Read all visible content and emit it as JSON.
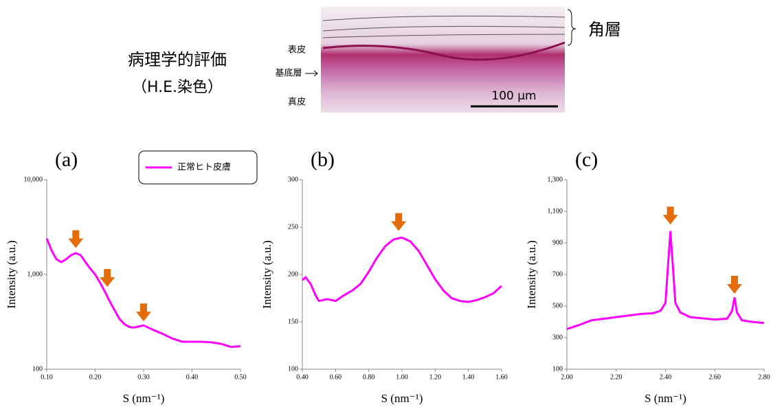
{
  "header": {
    "title": "病理学的評価",
    "subtitle": "（H.E.染色）"
  },
  "histology": {
    "layer_labels": [
      "表皮",
      "基底層",
      "真皮"
    ],
    "stratum_corneum": "角層",
    "scale_bar": "100 µm"
  },
  "chart_data": [
    {
      "type": "line",
      "panel_label": "(a)",
      "y_label": "Intensity (a.u.)",
      "x_label": "S (nm⁻¹)",
      "log_y": true,
      "legend": "top-right",
      "xlim": [
        0.1,
        0.5
      ],
      "xticks": [
        {
          "value": 0.1,
          "label": "0.10"
        },
        {
          "value": 0.2,
          "label": "0.20"
        },
        {
          "value": 0.3,
          "label": "0.30"
        },
        {
          "value": 0.4,
          "label": "0.40"
        },
        {
          "value": 0.5,
          "label": "0.50"
        }
      ],
      "ylim": [
        100,
        10000
      ],
      "yticks": [
        100,
        {
          "value": 1000,
          "label": "1,000"
        },
        {
          "value": 10000,
          "label": "10,000"
        }
      ],
      "x": [
        0.1,
        0.11,
        0.12,
        0.13,
        0.14,
        0.15,
        0.16,
        0.17,
        0.18,
        0.19,
        0.2,
        0.21,
        0.22,
        0.23,
        0.24,
        0.25,
        0.26,
        0.27,
        0.28,
        0.3,
        0.32,
        0.34,
        0.36,
        0.38,
        0.4,
        0.42,
        0.44,
        0.46,
        0.48,
        0.5
      ],
      "series": [
        {
          "name": "正常ヒト皮膚",
          "color": "#ff00ff",
          "values": [
            2400,
            1800,
            1450,
            1350,
            1450,
            1600,
            1680,
            1600,
            1350,
            1150,
            1000,
            820,
            660,
            520,
            420,
            340,
            300,
            280,
            275,
            290,
            260,
            235,
            210,
            195,
            195,
            195,
            192,
            185,
            172,
            175
          ]
        }
      ],
      "markers": [
        {
          "x": 0.16,
          "y": 1900
        },
        {
          "x": 0.225,
          "y": 740
        },
        {
          "x": 0.3,
          "y": 320
        }
      ],
      "marker_color": "#e46c0a"
    },
    {
      "type": "line",
      "panel_label": "(b)",
      "y_label": "Intensity (a.u.)",
      "x_label": "S (nm⁻¹)",
      "log_y": false,
      "xlim": [
        0.4,
        1.6
      ],
      "xticks": [
        {
          "value": 0.4,
          "label": "0.40"
        },
        {
          "value": 0.6,
          "label": "0.60"
        },
        {
          "value": 0.8,
          "label": "0.80"
        },
        {
          "value": 1.0,
          "label": "1.00"
        },
        {
          "value": 1.2,
          "label": "1.20"
        },
        {
          "value": 1.4,
          "label": "1.40"
        },
        {
          "value": 1.6,
          "label": "1.60"
        }
      ],
      "ylim": [
        100,
        300
      ],
      "yticks": [
        100,
        150,
        200,
        250,
        300
      ],
      "x": [
        0.4,
        0.42,
        0.45,
        0.48,
        0.5,
        0.55,
        0.6,
        0.65,
        0.7,
        0.75,
        0.8,
        0.85,
        0.9,
        0.95,
        1.0,
        1.05,
        1.1,
        1.15,
        1.2,
        1.25,
        1.3,
        1.35,
        1.4,
        1.45,
        1.5,
        1.55,
        1.6
      ],
      "series": [
        {
          "color": "#ff00ff",
          "values": [
            194,
            197,
            190,
            178,
            172,
            174,
            172,
            178,
            183,
            190,
            203,
            218,
            230,
            237,
            239,
            235,
            225,
            210,
            195,
            183,
            175,
            172,
            171,
            173,
            176,
            180,
            188
          ]
        }
      ],
      "markers": [
        {
          "x": 0.98,
          "y": 246
        }
      ],
      "marker_color": "#e46c0a"
    },
    {
      "type": "line",
      "panel_label": "(c)",
      "y_label": "Intensity (a.u.)",
      "x_label": "S (nm⁻¹)",
      "log_y": false,
      "xlim": [
        2.0,
        2.8
      ],
      "xticks": [
        {
          "value": 2.0,
          "label": "2.00"
        },
        {
          "value": 2.2,
          "label": "2.20"
        },
        {
          "value": 2.4,
          "label": "2.40"
        },
        {
          "value": 2.6,
          "label": "2.60"
        },
        {
          "value": 2.8,
          "label": "2.80"
        }
      ],
      "ylim": [
        100,
        1300
      ],
      "yticks": [
        100,
        300,
        500,
        700,
        900,
        {
          "value": 1100,
          "label": "1,100"
        },
        {
          "value": 1300,
          "label": "1,300"
        }
      ],
      "x": [
        2.0,
        2.05,
        2.1,
        2.2,
        2.3,
        2.35,
        2.38,
        2.4,
        2.41,
        2.42,
        2.43,
        2.44,
        2.46,
        2.5,
        2.6,
        2.65,
        2.67,
        2.68,
        2.69,
        2.71,
        2.75,
        2.8
      ],
      "series": [
        {
          "color": "#ff00ff",
          "values": [
            355,
            380,
            410,
            430,
            450,
            455,
            470,
            520,
            750,
            975,
            750,
            520,
            460,
            430,
            415,
            420,
            470,
            555,
            460,
            410,
            400,
            392
          ]
        }
      ],
      "markers": [
        {
          "x": 2.42,
          "y": 1017
        },
        {
          "x": 2.68,
          "y": 578
        }
      ],
      "marker_color": "#e46c0a"
    }
  ]
}
